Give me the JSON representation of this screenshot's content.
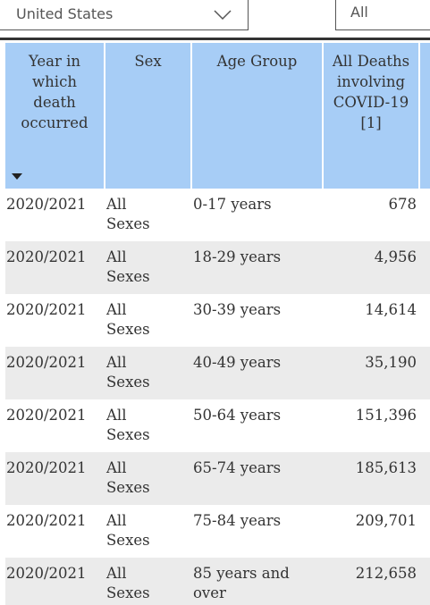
{
  "filters": {
    "country": "United States",
    "second": "All"
  },
  "table": {
    "columns": [
      "Year in which death occurred",
      "Sex",
      "Age Group",
      "All Deaths involving COVID-19 [1]"
    ],
    "rows": [
      [
        "2020/2021",
        "All Sexes",
        "0-17 years",
        "678"
      ],
      [
        "2020/2021",
        "All Sexes",
        "18-29 years",
        "4,956"
      ],
      [
        "2020/2021",
        "All Sexes",
        "30-39 years",
        "14,614"
      ],
      [
        "2020/2021",
        "All Sexes",
        "40-49 years",
        "35,190"
      ],
      [
        "2020/2021",
        "All Sexes",
        "50-64 years",
        "151,396"
      ],
      [
        "2020/2021",
        "All Sexes",
        "65-74 years",
        "185,613"
      ],
      [
        "2020/2021",
        "All Sexes",
        "75-84 years",
        "209,701"
      ],
      [
        "2020/2021",
        "All Sexes",
        "85 years and over",
        "212,658"
      ]
    ]
  }
}
